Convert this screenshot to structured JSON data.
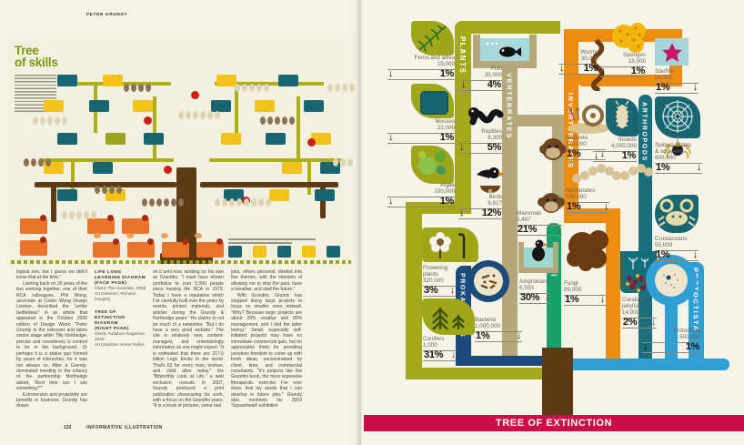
{
  "left_page": {
    "header": "PETER GRUNDY",
    "title_lines": [
      "Tree",
      "of skills"
    ],
    "footer": {
      "page_number": "132",
      "section": "INFORMATIVE ILLUSTRATION"
    },
    "captions": [
      {
        "title": "LIFE LONG LEARNING DIAGRAM",
        "sub": "(FACE PAGE)",
        "client": "Client: The Guardian, 2008",
        "direction": "Art Direction: Richard Doughty"
      },
      {
        "title": "TREE OF EXTINCTION DIAGRAM",
        "sub": "(RIGHT PAGE)",
        "client": "Client: Audubon magazine, 2010",
        "direction": "Art Direction: Kevin Fisher"
      }
    ],
    "body_columns": [
      [
        "logical one, but I guess we didn't know that at the time.\"",
        "Looking back on 26 years of the two working together, one of their RCA colleagues, Phil Wong, associate at Carter Wong Design London, described the \"unlike bedfellows\" in an article that appeared in the October 2006 edition of Design Week: \"Peter Grundy is the extrovert and takes centre stage while Tilly Northedge, precise and considered, is content to be in the background. Or perhaps it is a status quo formed by years of interaction, for it was not always so. After a Grundy-dominated meeting in the infancy of the partnership Northedge asked, 'Next time can I say something?'\"",
        "Extroversion and proactivity are benefits in business. Grundy has drawn"
      ],
      [
        "on it until now, working on his own as Grundini. \"I must have shown portfolios to over 5,000 people since leaving the RCA in 1979. Today I have a reputation which I've carefully built over the years by events, printed materials, and articles during the Grundy & Northedge years.\" He claims to not be much of a networker. \"But I do have a very good website.\" The site is relatively new, content-managed, and entertainingly informative as one might expect. \"It is estimated that there are 217.6 billion Lego bricks in the world. That's 62 for every man, woman, and child alive today,\" the \"Bitworthly Look at Life,\" a web exclusive, reveals. In 2007, Grundy produced a print publication showcasing his work, with a focus on the Grundini years. \"It is a book of pictures, some real"
      ],
      [
        "jobs, others personal, divided into five themes, with the intention of allowing me to stop the past, have a breather, and start the future.\"",
        "With Grundini, Grundy has stopped doing large projects to focus on smaller ones instead. \"Why? Because large projects are about 20% creative and 80% management, and I find the latter boring.\" Small, especially self-initiated projects may have no immediate commercial gain, but he appreciates them for providing priceless freedom to come up with fresh ideas, unconstrained by client, time, and commercial constraints. \"It's projects like the Grundini book, the most expensive therapeutic exercise I've ever done, that lay seeds that I can develop in future jobs.\" Grundy also mentions his 2003 'Squarehead' exhibition"
      ]
    ]
  },
  "extinction": {
    "banner": "TREE OF EXTINCTION",
    "groups": [
      {
        "label": "PLANTS",
        "color": "#a4a91c"
      },
      {
        "label": "VERTEBRATES",
        "color": "#b7a77c"
      },
      {
        "label": "INVERTEBRATES",
        "color": "#ee8c10"
      },
      {
        "label": "ARTHROPODS",
        "color": "#1b6e7c"
      },
      {
        "label": "FUNGI",
        "color": "#16a16b"
      },
      {
        "label": "PROKARYOTES",
        "color": "#1c4a7a"
      },
      {
        "label": "PROTOCTISTA",
        "color": "#2f9fd4"
      }
    ],
    "species": [
      {
        "name": "Ferns and allies",
        "count": "15,000",
        "pct": "1%",
        "dir": "left",
        "severe": false
      },
      {
        "name": "Mosses",
        "count": "22,000",
        "pct": "1%",
        "dir": "left",
        "severe": false
      },
      {
        "name": "Algae",
        "count": "200,000",
        "pct": "1%",
        "dir": "left",
        "severe": false
      },
      {
        "name": "Flowering plants",
        "count": "320,000",
        "pct": "3%",
        "dir": "right",
        "severe": true
      },
      {
        "name": "Conifers",
        "count": "1,000",
        "pct": "31%",
        "dir": "right",
        "severe": true
      },
      {
        "name": "Fish",
        "count": "35,000",
        "pct": "4%",
        "dir": "left",
        "severe": false
      },
      {
        "name": "Reptiles",
        "count": "8,300",
        "pct": "5%",
        "dir": "left",
        "severe": false
      },
      {
        "name": "Birds",
        "count": "9,917",
        "pct": "12%",
        "dir": "left",
        "severe": false
      },
      {
        "name": "Mammals",
        "count": "5,487",
        "pct": "21%",
        "dir": "right",
        "severe": true
      },
      {
        "name": "Amphibians",
        "count": "6,500",
        "pct": "30%",
        "dir": "right",
        "severe": true
      },
      {
        "name": "Worms",
        "count": "30,000",
        "pct": "1%",
        "dir": "left",
        "severe": false
      },
      {
        "name": "Sponges",
        "count": "18,000",
        "pct": "1%",
        "dir": "left",
        "severe": false
      },
      {
        "name": "Starfish",
        "count": "14,000",
        "pct": "1%",
        "dir": "right",
        "severe": false
      },
      {
        "name": "Mollusks",
        "count": "120,000",
        "pct": "1%",
        "dir": "right",
        "severe": false
      },
      {
        "name": "Insects",
        "count": "4,000,000",
        "pct": "1%",
        "dir": "left",
        "severe": false
      },
      {
        "name": "Spiders, mites\n& scorpions",
        "count": "600,000",
        "pct": "1%",
        "dir": "right",
        "severe": false
      },
      {
        "name": "Nematodes",
        "count": "500,000",
        "pct": "1%",
        "dir": "right",
        "severe": false
      },
      {
        "name": "Crustaceans",
        "count": "55,000",
        "pct": "1%",
        "dir": "right",
        "severe": false
      },
      {
        "name": "Fungi",
        "count": "99,000",
        "pct": "1%",
        "dir": "right",
        "severe": false
      },
      {
        "name": "Bacteria",
        "count": "1,000,000",
        "pct": "1%",
        "dir": "right",
        "severe": false
      },
      {
        "name": "Corals &\njellyfish",
        "count": "14,000",
        "pct": "2%",
        "dir": "right",
        "severe": true
      },
      {
        "name": "Protoctista",
        "count": "500,000",
        "pct": "1%",
        "dir": "left",
        "severe": false
      }
    ]
  }
}
